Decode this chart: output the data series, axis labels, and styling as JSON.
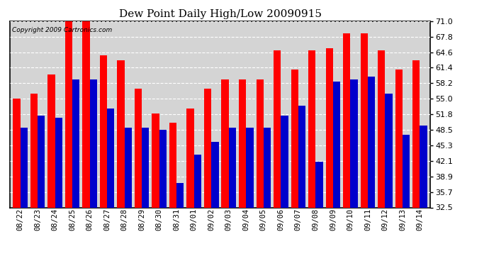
{
  "title": "Dew Point Daily High/Low 20090915",
  "copyright": "Copyright 2009 Cartronics.com",
  "dates": [
    "08/22",
    "08/23",
    "08/24",
    "08/25",
    "08/26",
    "08/27",
    "08/28",
    "08/29",
    "08/30",
    "08/31",
    "09/01",
    "09/02",
    "09/03",
    "09/04",
    "09/05",
    "09/06",
    "09/07",
    "09/08",
    "09/09",
    "09/10",
    "09/11",
    "09/12",
    "09/13",
    "09/14"
  ],
  "highs": [
    55.0,
    56.0,
    60.0,
    71.0,
    71.0,
    64.0,
    63.0,
    57.0,
    52.0,
    50.0,
    53.0,
    57.0,
    59.0,
    59.0,
    59.0,
    65.0,
    61.0,
    65.0,
    65.5,
    68.5,
    68.5,
    65.0,
    61.0,
    63.0
  ],
  "lows": [
    49.0,
    51.5,
    51.0,
    59.0,
    59.0,
    53.0,
    49.0,
    49.0,
    48.5,
    37.5,
    43.5,
    46.0,
    49.0,
    49.0,
    49.0,
    51.5,
    53.5,
    42.0,
    58.5,
    59.0,
    59.5,
    56.0,
    47.5,
    49.5
  ],
  "high_color": "#ff0000",
  "low_color": "#0000cc",
  "plot_bg_color": "#d4d4d4",
  "fig_bg_color": "#ffffff",
  "grid_color": "#ffffff",
  "ylim_min": 32.5,
  "ylim_max": 71.0,
  "yticks": [
    32.5,
    35.7,
    38.9,
    42.1,
    45.3,
    48.5,
    51.8,
    55.0,
    58.2,
    61.4,
    64.6,
    67.8,
    71.0
  ],
  "bar_width": 0.42,
  "figsize": [
    6.9,
    3.75
  ],
  "dpi": 100
}
